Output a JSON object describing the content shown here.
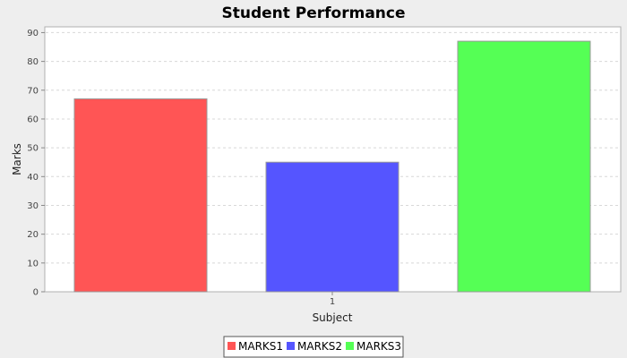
{
  "chart_data": {
    "type": "bar",
    "title": "Student Performance",
    "xlabel": "Subject",
    "ylabel": "Marks",
    "categories": [
      "1"
    ],
    "series": [
      {
        "name": "MARKS1",
        "values": [
          67
        ],
        "color": "#ff5555"
      },
      {
        "name": "MARKS2",
        "values": [
          45
        ],
        "color": "#5555ff"
      },
      {
        "name": "MARKS3",
        "values": [
          87
        ],
        "color": "#55ff55"
      }
    ],
    "ylim": [
      0,
      92
    ],
    "yticks": [
      0,
      10,
      20,
      30,
      40,
      50,
      60,
      70,
      80,
      90
    ],
    "grid": true,
    "legend_position": "bottom-center"
  }
}
